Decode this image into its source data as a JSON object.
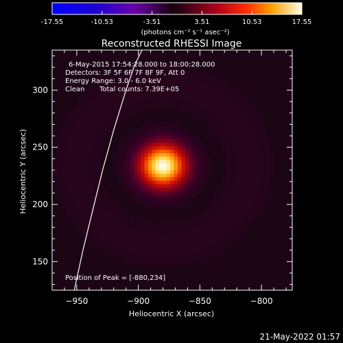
{
  "chart_data": {
    "type": "heatmap",
    "title": "Reconstructed RHESSI Image",
    "colorbar": {
      "min": -17.55,
      "max": 17.55,
      "tick_labels": [
        "-17.55",
        "-10.53",
        "-3.51",
        "3.51",
        "10.53",
        "17.55"
      ],
      "unit_label": "(photons cm⁻² s⁻¹ asec⁻²)"
    },
    "annotations": {
      "time": "6-May-2015 17:54:28.000 to 18:00:28.000",
      "detectors": "Detectors: 3F 5F 6F 7F 8F 9F, Att 0",
      "energy": "Energy Range: 3.0 - 6.0 keV",
      "clean": "Clean",
      "counts": "Total counts: 7.39E+05",
      "peak": "Position of Peak = [-880,234]"
    },
    "xlabel": "Heliocentric X (arcsec)",
    "ylabel": "Heliocentric Y (arcsec)",
    "xlim": [
      -970,
      -775
    ],
    "ylim": [
      125,
      335
    ],
    "xticks": [
      -950,
      -900,
      -850,
      -800
    ],
    "yticks": [
      150,
      200,
      250,
      300
    ],
    "source": {
      "x": -880,
      "y": 234,
      "peak": 17.55,
      "sigma": 13
    },
    "limb": [
      [
        -952,
        125
      ],
      [
        -945,
        160
      ],
      [
        -937,
        195
      ],
      [
        -929,
        230
      ],
      [
        -920,
        265
      ],
      [
        -910,
        300
      ],
      [
        -903,
        322
      ],
      [
        -897,
        335
      ]
    ],
    "footer_date": "21-May-2022 01:57"
  }
}
